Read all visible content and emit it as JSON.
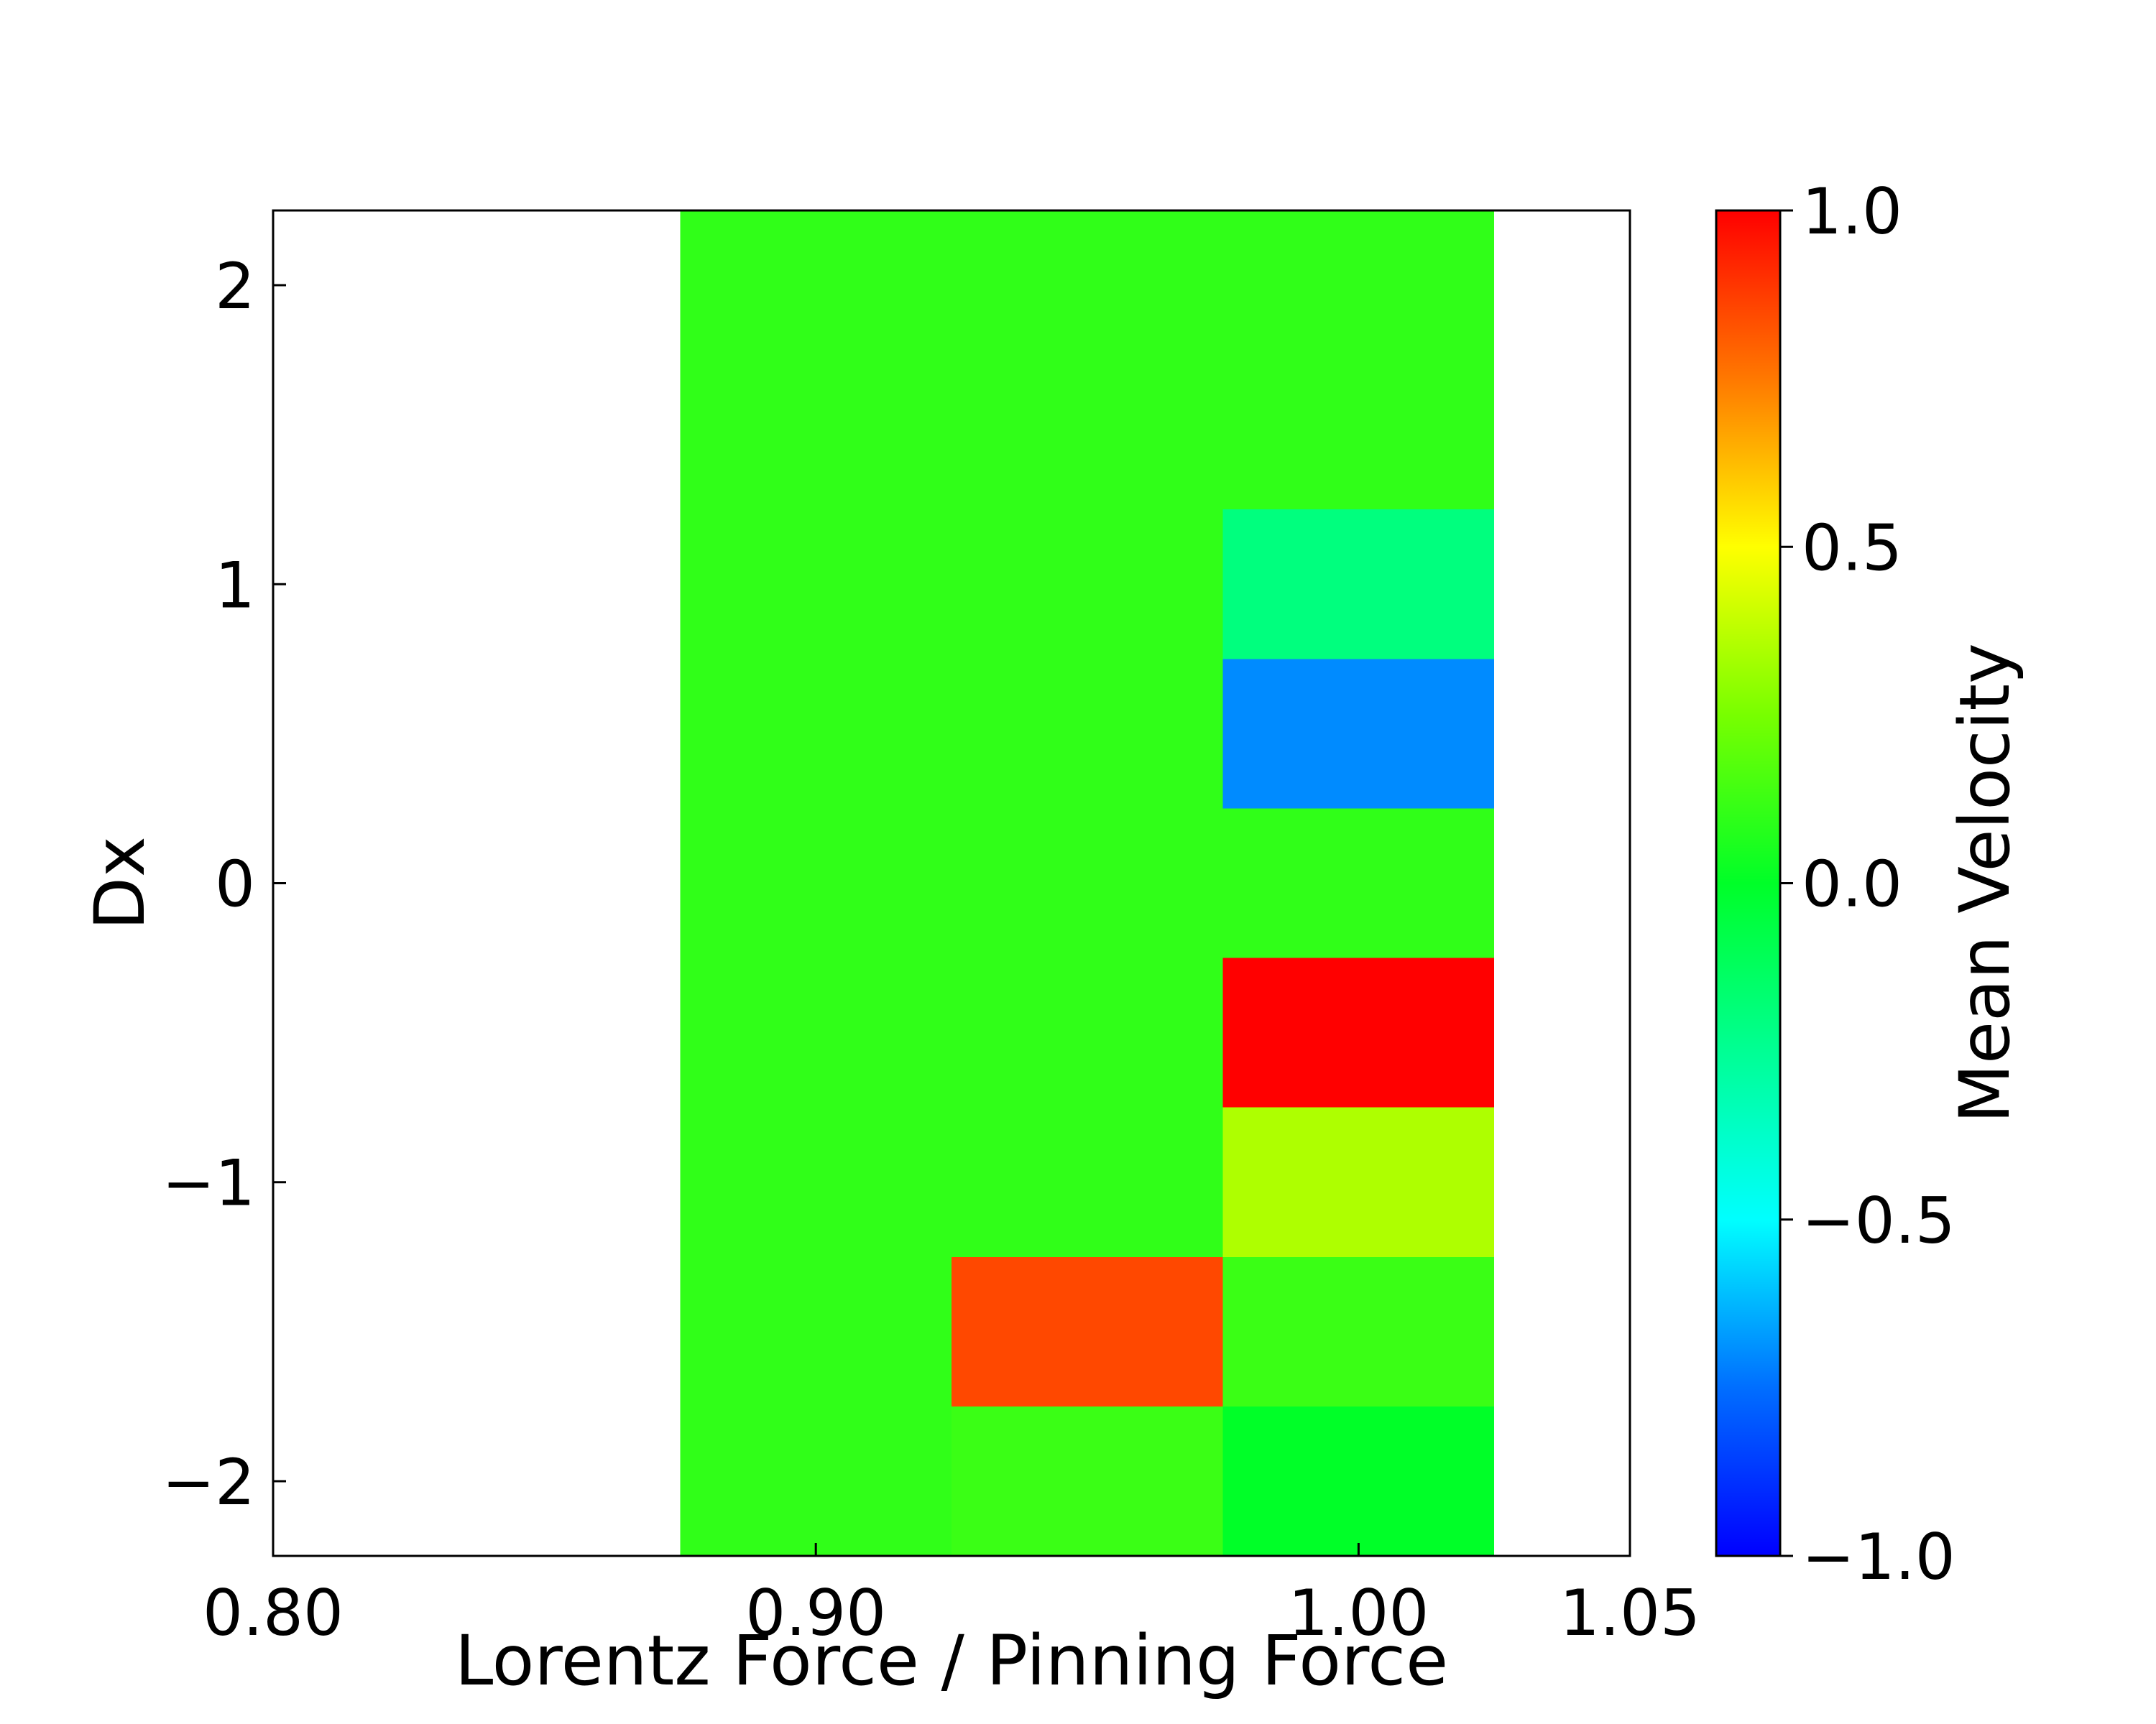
{
  "chart_data": {
    "type": "heatmap",
    "xlabel": "Lorentz Force / Pinning Force",
    "ylabel": "Dx",
    "colorbar_label": "Mean Velocity",
    "colormap": "hsv-like (blue -1 → cyan → green 0 → yellow → red 1)",
    "clim": [
      -1.0,
      1.0
    ],
    "xlim": [
      0.8,
      1.05
    ],
    "ylim": [
      -2.25,
      2.25
    ],
    "x_ticks": [
      0.8,
      0.9,
      1.0,
      1.05
    ],
    "x_tick_labels": [
      "0.80",
      "0.90",
      "1.00",
      "1.05"
    ],
    "y_ticks": [
      -2,
      -1,
      0,
      1,
      2
    ],
    "y_tick_labels": [
      "−2",
      "−1",
      "0",
      "1",
      "2"
    ],
    "cbar_ticks": [
      -1.0,
      -0.5,
      0.0,
      0.5,
      1.0
    ],
    "cbar_tick_labels": [
      "−1.0",
      "−0.5",
      "0.0",
      "0.5",
      "1.0"
    ],
    "x": [
      0.9,
      0.95,
      1.0
    ],
    "x_step": 0.05,
    "y": [
      -2.0,
      -1.5,
      -1.0,
      -0.5,
      0.0,
      0.5,
      1.0,
      1.5,
      2.0
    ],
    "y_step": 0.5,
    "z": [
      [
        0.1,
        0.1,
        0.1,
        0.1,
        0.1,
        0.1,
        0.1,
        0.1,
        0.1
      ],
      [
        0.12,
        0.85,
        0.1,
        0.1,
        0.1,
        0.1,
        0.1,
        0.1,
        0.1
      ],
      [
        0.0,
        0.12,
        0.35,
        1.0,
        0.1,
        -0.7,
        -0.2,
        0.1,
        0.1
      ]
    ],
    "z_layout": "z[i][j] is the mean velocity at x[i], y[j]"
  }
}
